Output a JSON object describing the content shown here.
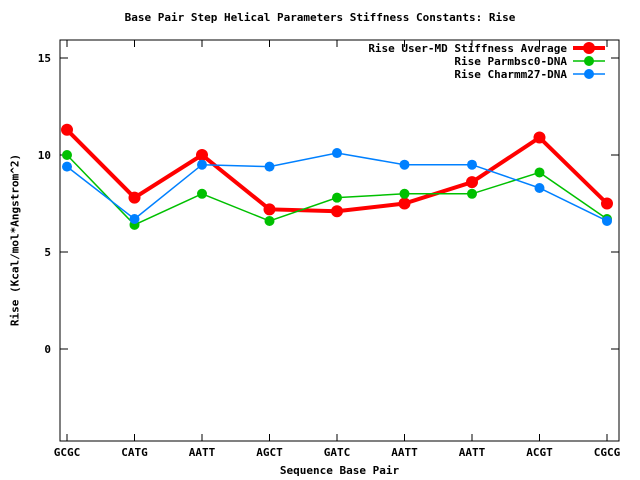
{
  "chart_data": {
    "type": "line",
    "title": "Base Pair Step Helical Parameters Stiffness Constants: Rise",
    "xlabel": "Sequence Base Pair",
    "ylabel": "Rise (Kcal/mol*Angstrom^2)",
    "categories": [
      "GCGC",
      "CATG",
      "AATT",
      "AGCT",
      "GATC",
      "AATT",
      "AATT",
      "ACGT",
      "CGCG"
    ],
    "series": [
      {
        "name": "Rise User-MD Stiffness Average",
        "color": "#ff0000",
        "thick": true,
        "values": [
          11.3,
          7.8,
          10.0,
          7.2,
          7.1,
          7.5,
          8.6,
          10.9,
          7.5
        ]
      },
      {
        "name": "Rise Parmbsc0-DNA",
        "color": "#00c000",
        "thick": false,
        "values": [
          10.0,
          6.4,
          8.0,
          6.6,
          7.8,
          8.0,
          8.0,
          9.1,
          6.7
        ]
      },
      {
        "name": "Rise Charmm27-DNA",
        "color": "#0080ff",
        "thick": false,
        "values": [
          9.4,
          6.7,
          9.5,
          9.4,
          10.1,
          9.5,
          9.5,
          8.3,
          6.6
        ]
      }
    ],
    "yticks": [
      0,
      5,
      10,
      15
    ],
    "ylim": [
      -4.8,
      15.9
    ],
    "grid": false,
    "marker": "filled-circle",
    "legend_position": "top-right-inside",
    "axis_color": "#000000",
    "background_color": "#ffffff"
  }
}
